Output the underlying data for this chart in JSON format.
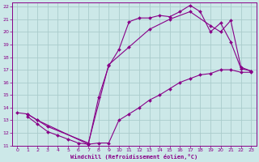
{
  "bg_color": "#cce8e8",
  "grid_color": "#aacccc",
  "line_color": "#880088",
  "marker_color": "#880088",
  "xlabel": "Windchill (Refroidissement éolien,°C)",
  "xlim": [
    -0.5,
    23.5
  ],
  "ylim": [
    11,
    22.3
  ],
  "xticks": [
    0,
    1,
    2,
    3,
    4,
    5,
    6,
    7,
    8,
    9,
    10,
    11,
    12,
    13,
    14,
    15,
    16,
    17,
    18,
    19,
    20,
    21,
    22,
    23
  ],
  "yticks": [
    11,
    12,
    13,
    14,
    15,
    16,
    17,
    18,
    19,
    20,
    21,
    22
  ],
  "curve_top_x": [
    1,
    2,
    7,
    8,
    9,
    10,
    11,
    12,
    13,
    14,
    15,
    16,
    17,
    18,
    19,
    20,
    21,
    22,
    23
  ],
  "curve_top_y": [
    13.5,
    13.0,
    11.1,
    14.8,
    17.3,
    18.6,
    20.8,
    21.1,
    21.1,
    21.3,
    21.2,
    21.6,
    22.1,
    21.6,
    20.0,
    20.7,
    19.2,
    17.1,
    16.9
  ],
  "curve_mid_x": [
    0,
    1,
    2,
    3,
    7,
    9,
    11,
    13,
    15,
    17,
    19,
    20,
    21,
    22,
    23
  ],
  "curve_mid_y": [
    13.6,
    13.5,
    13.0,
    12.5,
    11.2,
    17.4,
    18.8,
    20.2,
    21.0,
    21.6,
    20.5,
    20.0,
    20.9,
    17.2,
    16.9
  ],
  "curve_bot_x": [
    1,
    2,
    3,
    4,
    5,
    6,
    7,
    8,
    9,
    10,
    11,
    12,
    13,
    14,
    15,
    16,
    17,
    18,
    19,
    20,
    21,
    22,
    23
  ],
  "curve_bot_y": [
    13.3,
    12.7,
    12.1,
    11.8,
    11.5,
    11.2,
    11.1,
    11.2,
    11.2,
    13.0,
    13.5,
    14.0,
    14.6,
    15.0,
    15.5,
    16.0,
    16.3,
    16.6,
    16.7,
    17.0,
    17.0,
    16.8,
    16.8
  ]
}
